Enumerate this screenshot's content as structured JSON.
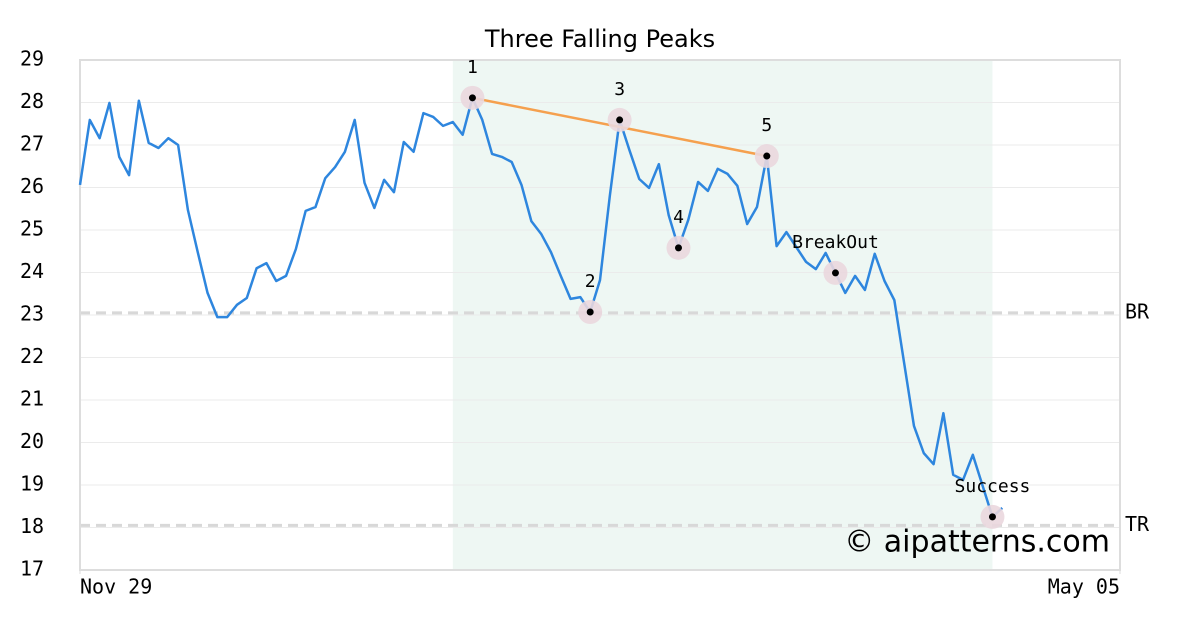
{
  "chart_data": {
    "type": "line",
    "title": "Three Falling Peaks",
    "color": "#2e86de",
    "x": [
      0,
      1,
      2,
      3,
      4,
      5,
      6,
      7,
      8,
      9,
      10,
      11,
      12,
      13,
      14,
      15,
      16,
      17,
      18,
      19,
      20,
      21,
      22,
      23,
      24,
      25,
      26,
      27,
      28,
      29,
      30,
      31,
      32,
      33,
      34,
      35,
      36,
      37,
      38,
      39,
      40,
      41,
      42,
      43,
      44,
      45,
      46,
      47,
      48,
      49,
      50,
      51,
      52,
      53,
      54,
      55,
      56,
      57,
      58,
      59,
      60,
      61,
      62,
      63,
      64,
      65,
      66,
      67,
      68,
      69,
      70,
      71,
      72,
      73,
      74,
      75,
      76,
      77,
      78,
      79,
      80,
      81,
      82,
      83,
      84,
      85,
      86,
      87,
      88,
      89,
      90,
      91,
      92,
      93,
      94
    ],
    "values": [
      26.06,
      27.59,
      27.16,
      27.99,
      26.72,
      26.29,
      28.04,
      27.05,
      26.93,
      27.16,
      27.0,
      25.47,
      24.48,
      23.52,
      22.95,
      22.95,
      23.24,
      23.4,
      24.1,
      24.22,
      23.8,
      23.92,
      24.55,
      25.45,
      25.54,
      26.22,
      26.48,
      26.84,
      27.59,
      26.11,
      25.52,
      26.18,
      25.89,
      27.07,
      26.84,
      27.75,
      27.66,
      27.45,
      27.54,
      27.24,
      28.11,
      27.59,
      26.79,
      26.72,
      26.6,
      26.06,
      25.21,
      24.91,
      24.48,
      23.92,
      23.38,
      23.42,
      23.07,
      23.82,
      25.8,
      27.59,
      26.88,
      26.2,
      25.99,
      26.55,
      25.35,
      24.58,
      25.24,
      26.13,
      25.92,
      26.44,
      26.32,
      26.04,
      25.14,
      25.54,
      26.74,
      24.62,
      24.95,
      24.6,
      24.25,
      24.08,
      24.46,
      23.99,
      23.52,
      23.92,
      23.59,
      24.44,
      23.8,
      23.35,
      21.87,
      20.39,
      19.75,
      19.49,
      20.69,
      19.24,
      19.12,
      19.71,
      18.98,
      18.25,
      18.46
    ],
    "xlim": [
      0,
      106
    ],
    "xticks": [
      {
        "value": 0,
        "label": "Nov 29"
      },
      {
        "value": 106,
        "label": "May 05"
      }
    ],
    "ylim": [
      17,
      29
    ],
    "yticks": [
      17,
      18,
      19,
      20,
      21,
      22,
      23,
      24,
      25,
      26,
      27,
      28,
      29
    ],
    "grid": true,
    "highlight": [
      38,
      93
    ],
    "highlight_color": "#eef7f3",
    "levels": [
      {
        "label": "BR",
        "value": 23.05
      },
      {
        "label": "TR",
        "value": 18.05
      }
    ],
    "trendline": {
      "x": [
        40,
        70
      ],
      "y": [
        28.11,
        26.74
      ],
      "color": "#f5a04e"
    },
    "annotations": [
      {
        "text": "1",
        "x": 40,
        "y": 28.11
      },
      {
        "text": "2",
        "x": 52,
        "y": 23.07
      },
      {
        "text": "3",
        "x": 55,
        "y": 27.59
      },
      {
        "text": "4",
        "x": 61,
        "y": 24.58
      },
      {
        "text": "5",
        "x": 70,
        "y": 26.74
      },
      {
        "text": "BreakOut",
        "x": 77,
        "y": 23.99
      },
      {
        "text": "Success",
        "x": 93,
        "y": 18.25
      }
    ],
    "watermark": "© aipatterns.com"
  }
}
